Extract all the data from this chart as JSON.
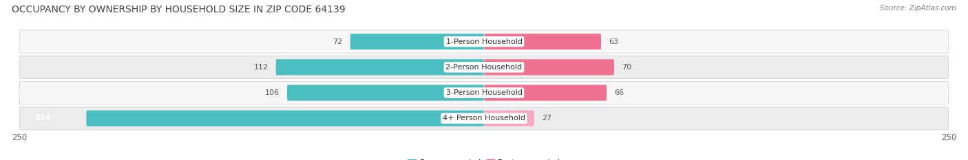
{
  "title": "OCCUPANCY BY OWNERSHIP BY HOUSEHOLD SIZE IN ZIP CODE 64139",
  "source": "Source: ZipAtlas.com",
  "categories": [
    "1-Person Household",
    "2-Person Household",
    "3-Person Household",
    "4+ Person Household"
  ],
  "owner_values": [
    72,
    112,
    106,
    214
  ],
  "renter_values": [
    63,
    70,
    66,
    27
  ],
  "max_scale": 250,
  "owner_color": "#4BBFBF",
  "renter_color": "#F07090",
  "renter_color_light": "#F5A8C0",
  "row_bg_color_light": "#F7F7F7",
  "row_bg_color_dark": "#ECECEC",
  "title_fontsize": 10,
  "source_fontsize": 7.5,
  "tick_fontsize": 8.5,
  "bar_label_fontsize": 8,
  "category_fontsize": 8,
  "legend_fontsize": 8
}
